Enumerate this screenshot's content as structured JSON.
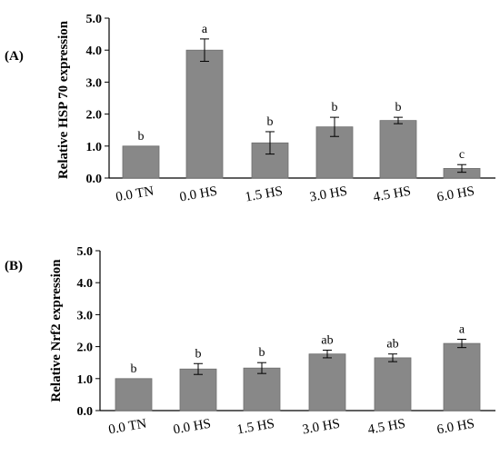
{
  "chart_data": [
    {
      "type": "bar",
      "panel_label": "(A)",
      "ylabel": "Relative HSP 70 expression",
      "categories": [
        "0.0 TN",
        "0.0 HS",
        "1.5 HS",
        "3.0 HS",
        "4.5 HS",
        "6.0 HS"
      ],
      "values": [
        1.0,
        4.0,
        1.1,
        1.6,
        1.8,
        0.3
      ],
      "errors": [
        0.0,
        0.35,
        0.35,
        0.3,
        0.1,
        0.12
      ],
      "labels": [
        "b",
        "a",
        "b",
        "b",
        "b",
        "c"
      ],
      "yticks": [
        "0.0",
        "1.0",
        "2.0",
        "3.0",
        "4.0",
        "5.0"
      ],
      "ylim": [
        0,
        5
      ],
      "bar_color": "#888888"
    },
    {
      "type": "bar",
      "panel_label": "(B)",
      "ylabel": "Relative Nrf2 expression",
      "categories": [
        "0.0 TN",
        "0.0 HS",
        "1.5 HS",
        "3.0 HS",
        "4.5 HS",
        "6.0 HS"
      ],
      "values": [
        1.0,
        1.3,
        1.33,
        1.77,
        1.65,
        2.1
      ],
      "errors": [
        0.0,
        0.17,
        0.17,
        0.12,
        0.12,
        0.13
      ],
      "labels": [
        "b",
        "b",
        "b",
        "ab",
        "ab",
        "a"
      ],
      "yticks": [
        "0.0",
        "1.0",
        "2.0",
        "3.0",
        "4.0",
        "5.0"
      ],
      "ylim": [
        0,
        5
      ],
      "bar_color": "#888888"
    }
  ]
}
